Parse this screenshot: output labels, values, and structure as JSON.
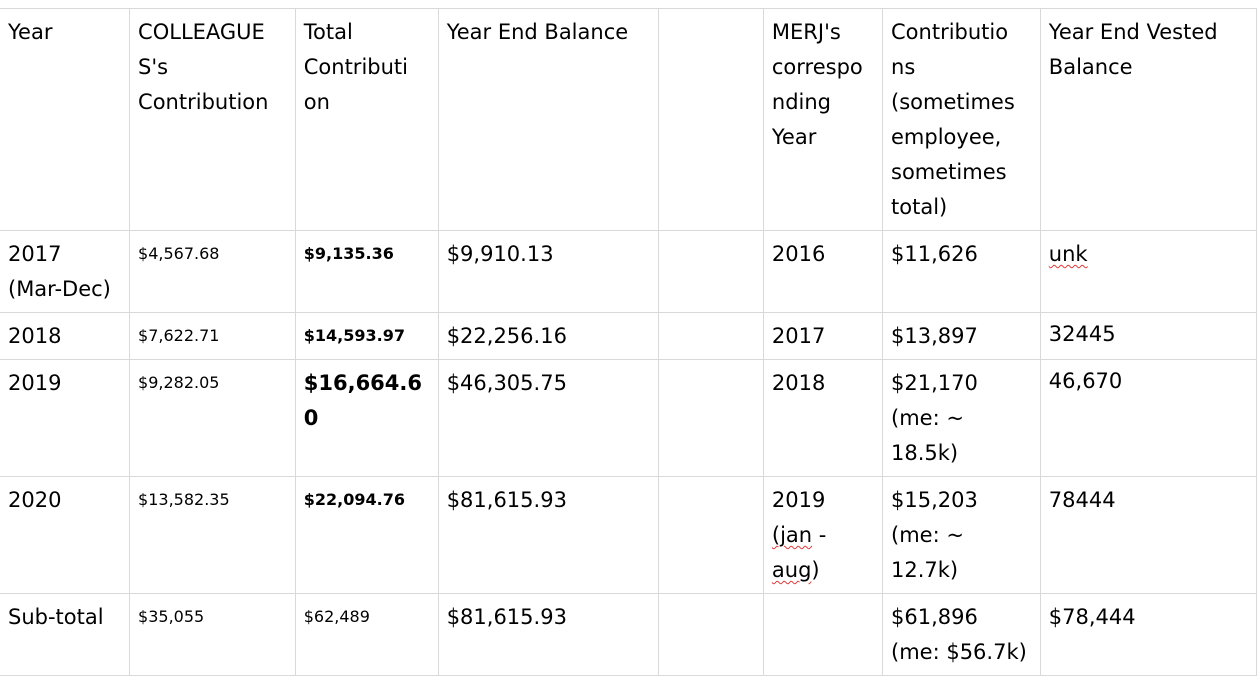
{
  "table": {
    "headers": {
      "year": "Year",
      "colleague_contribution": "COLLEAGUE S's Contribution",
      "total_contribution": "Total Contributi on",
      "year_end_balance": "Year End Balance",
      "blank": "",
      "merj_year": "MERJ's correspo nding Year",
      "contributions": "Contributio ns (sometimes employee, sometimes total)",
      "year_end_vested": "Year End Vested Balance"
    },
    "rows": [
      {
        "year_line1": "2017",
        "year_line2": "(Mar-Dec)",
        "colleague": "$4,567.68",
        "total": "$9,135.36",
        "balance": "$9,910.13",
        "merj_year_line1": "2016",
        "merj_year_line2": "",
        "contrib_line1": "$11,626",
        "contrib_line2": "",
        "contrib_line3": "",
        "vested": "unk"
      },
      {
        "year_line1": "2018",
        "year_line2": "",
        "colleague": "$7,622.71",
        "total": "$14,593.97",
        "balance": "$22,256.16",
        "merj_year_line1": "2017",
        "merj_year_line2": "",
        "contrib_line1": "$13,897",
        "contrib_line2": "",
        "contrib_line3": "",
        "vested": "32445"
      },
      {
        "year_line1": "2019",
        "year_line2": "",
        "colleague": "$9,282.05",
        "total_line1": "$16,664.6",
        "total_line2": "0",
        "balance": "$46,305.75",
        "merj_year_line1": "2018",
        "merj_year_line2": "",
        "contrib_line1": "$21,170",
        "contrib_line2": "(me: ~",
        "contrib_line3": "18.5k)",
        "vested": "46,670"
      },
      {
        "year_line1": "2020",
        "year_line2": "",
        "colleague": "$13,582.35",
        "total": "$22,094.76",
        "balance": "$81,615.93",
        "merj_year_line1": "2019",
        "merj_year_line2a": "(jan",
        "merj_year_line2b": " -",
        "merj_year_line3a": "aug",
        "merj_year_line3b": ")",
        "contrib_line1": "$15,203",
        "contrib_line2": "(me: ~",
        "contrib_line3": "12.7k)",
        "vested": "78444"
      },
      {
        "year_line1": "Sub-total",
        "colleague": "$35,055",
        "total": "$62,489",
        "balance": "$81,615.93",
        "merj_year_line1": "",
        "contrib_line1": "$61,896",
        "contrib_line2": "(me: $56.7k)",
        "vested": "$78,444"
      }
    ]
  }
}
